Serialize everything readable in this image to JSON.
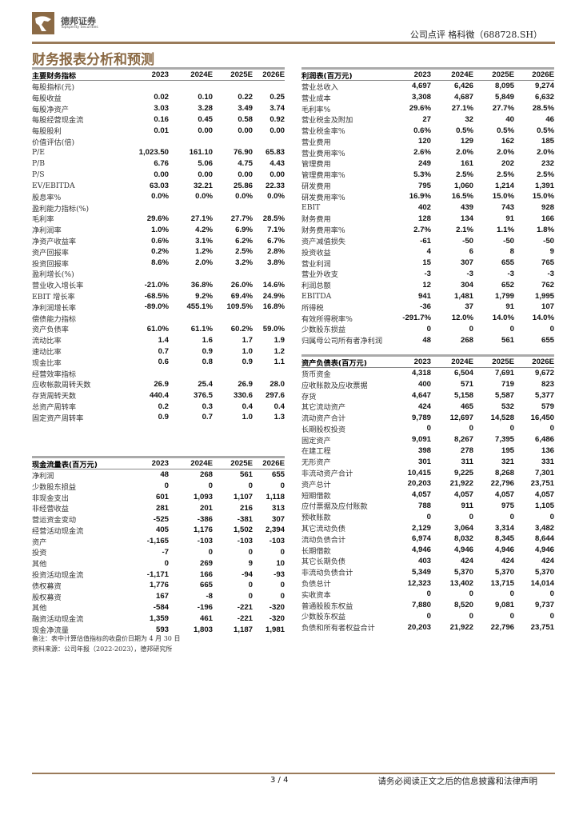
{
  "header": {
    "brand_cn": "德邦证券",
    "brand_en": "Topsperity Securities",
    "report_type": "公司点评  格科微（688728.SH）",
    "section_title": "财务报表分析和预测"
  },
  "colors": {
    "brand": "#8b6a45",
    "rule": "#9a7b5a"
  },
  "key_metrics": {
    "columns": [
      "主要财务指标",
      "2023",
      "2024E",
      "2025E",
      "2026E"
    ],
    "rows": [
      [
        "每股指标(元)",
        "",
        "",
        "",
        ""
      ],
      [
        "每股收益",
        "0.02",
        "0.10",
        "0.22",
        "0.25"
      ],
      [
        "每股净资产",
        "3.03",
        "3.28",
        "3.49",
        "3.74"
      ],
      [
        "每股经营现金流",
        "0.16",
        "0.45",
        "0.58",
        "0.92"
      ],
      [
        "每股股利",
        "0.01",
        "0.00",
        "0.00",
        "0.00"
      ],
      [
        "价值评估(倍)",
        "",
        "",
        "",
        ""
      ],
      [
        "P/E",
        "1,023.50",
        "161.10",
        "76.90",
        "65.83"
      ],
      [
        "P/B",
        "6.76",
        "5.06",
        "4.75",
        "4.43"
      ],
      [
        "P/S",
        "0.00",
        "0.00",
        "0.00",
        "0.00"
      ],
      [
        "EV/EBITDA",
        "63.03",
        "32.21",
        "25.86",
        "22.33"
      ],
      [
        "股息率%",
        "0.0%",
        "0.0%",
        "0.0%",
        "0.0%"
      ],
      [
        "盈利能力指标(%)",
        "",
        "",
        "",
        ""
      ],
      [
        "毛利率",
        "29.6%",
        "27.1%",
        "27.7%",
        "28.5%"
      ],
      [
        "净利润率",
        "1.0%",
        "4.2%",
        "6.9%",
        "7.1%"
      ],
      [
        "净资产收益率",
        "0.6%",
        "3.1%",
        "6.2%",
        "6.7%"
      ],
      [
        "资产回报率",
        "0.2%",
        "1.2%",
        "2.5%",
        "2.8%"
      ],
      [
        "投资回报率",
        "8.6%",
        "2.0%",
        "3.2%",
        "3.8%"
      ],
      [
        "盈利增长(%)",
        "",
        "",
        "",
        ""
      ],
      [
        "营业收入增长率",
        "-21.0%",
        "36.8%",
        "26.0%",
        "14.6%"
      ],
      [
        "EBIT 增长率",
        "-68.5%",
        "9.2%",
        "69.4%",
        "24.9%"
      ],
      [
        "净利润增长率",
        "-89.0%",
        "455.1%",
        "109.5%",
        "16.8%"
      ],
      [
        "偿债能力指标",
        "",
        "",
        "",
        ""
      ],
      [
        "资产负债率",
        "61.0%",
        "61.1%",
        "60.2%",
        "59.0%"
      ],
      [
        "流动比率",
        "1.4",
        "1.6",
        "1.7",
        "1.9"
      ],
      [
        "速动比率",
        "0.7",
        "0.9",
        "1.0",
        "1.2"
      ],
      [
        "现金比率",
        "0.6",
        "0.8",
        "0.9",
        "1.1"
      ],
      [
        "经营效率指标",
        "",
        "",
        "",
        ""
      ],
      [
        "应收帐款周转天数",
        "26.9",
        "25.4",
        "26.9",
        "28.0"
      ],
      [
        "存货周转天数",
        "440.4",
        "376.5",
        "330.6",
        "297.6"
      ],
      [
        "总资产周转率",
        "0.2",
        "0.3",
        "0.4",
        "0.4"
      ],
      [
        "固定资产周转率",
        "0.9",
        "0.7",
        "1.0",
        "1.3"
      ]
    ]
  },
  "cash_flow": {
    "columns": [
      "现金流量表(百万元)",
      "2023",
      "2024E",
      "2025E",
      "2026E"
    ],
    "rows": [
      [
        "净利润",
        "48",
        "268",
        "561",
        "655"
      ],
      [
        "少数股东损益",
        "0",
        "0",
        "0",
        "0"
      ],
      [
        "非现金支出",
        "601",
        "1,093",
        "1,107",
        "1,118"
      ],
      [
        "非经营收益",
        "281",
        "201",
        "216",
        "313"
      ],
      [
        "营运资金变动",
        "-525",
        "-386",
        "-381",
        "307"
      ],
      [
        "经营活动现金流",
        "405",
        "1,176",
        "1,502",
        "2,394"
      ],
      [
        "资产",
        "-1,165",
        "-103",
        "-103",
        "-103"
      ],
      [
        "投资",
        "-7",
        "0",
        "0",
        "0"
      ],
      [
        "其他",
        "0",
        "269",
        "9",
        "10"
      ],
      [
        "投资活动现金流",
        "-1,171",
        "166",
        "-94",
        "-93"
      ],
      [
        "债权募资",
        "1,776",
        "665",
        "0",
        "0"
      ],
      [
        "股权募资",
        "167",
        "-8",
        "0",
        "0"
      ],
      [
        "其他",
        "-584",
        "-196",
        "-221",
        "-320"
      ],
      [
        "融资活动现金流",
        "1,359",
        "461",
        "-221",
        "-320"
      ],
      [
        "现金净流量",
        "593",
        "1,803",
        "1,187",
        "1,981"
      ]
    ]
  },
  "notes": {
    "note": "备注：表中计算估值指标的收盘价日期为 4 月 30 日",
    "source": "资料来源：公司年报（2022-2023），德邦研究所"
  },
  "income_statement": {
    "columns": [
      "利润表(百万元)",
      "2023",
      "2024E",
      "2025E",
      "2026E"
    ],
    "rows": [
      [
        "营业总收入",
        "4,697",
        "6,426",
        "8,095",
        "9,274"
      ],
      [
        "营业成本",
        "3,308",
        "4,687",
        "5,849",
        "6,632"
      ],
      [
        "毛利率%",
        "29.6%",
        "27.1%",
        "27.7%",
        "28.5%"
      ],
      [
        "营业税金及附加",
        "27",
        "32",
        "40",
        "46"
      ],
      [
        "营业税金率%",
        "0.6%",
        "0.5%",
        "0.5%",
        "0.5%"
      ],
      [
        "营业费用",
        "120",
        "129",
        "162",
        "185"
      ],
      [
        "营业费用率%",
        "2.6%",
        "2.0%",
        "2.0%",
        "2.0%"
      ],
      [
        "管理费用",
        "249",
        "161",
        "202",
        "232"
      ],
      [
        "管理费用率%",
        "5.3%",
        "2.5%",
        "2.5%",
        "2.5%"
      ],
      [
        "研发费用",
        "795",
        "1,060",
        "1,214",
        "1,391"
      ],
      [
        "研发费用率%",
        "16.9%",
        "16.5%",
        "15.0%",
        "15.0%"
      ],
      [
        "EBIT",
        "402",
        "439",
        "743",
        "928"
      ],
      [
        "财务费用",
        "128",
        "134",
        "91",
        "166"
      ],
      [
        "财务费用率%",
        "2.7%",
        "2.1%",
        "1.1%",
        "1.8%"
      ],
      [
        "资产减值损失",
        "-61",
        "-50",
        "-50",
        "-50"
      ],
      [
        "投资收益",
        "4",
        "6",
        "8",
        "9"
      ],
      [
        "营业利润",
        "15",
        "307",
        "655",
        "765"
      ],
      [
        "营业外收支",
        "-3",
        "-3",
        "-3",
        "-3"
      ],
      [
        "利润总额",
        "12",
        "304",
        "652",
        "762"
      ],
      [
        "EBITDA",
        "941",
        "1,481",
        "1,799",
        "1,995"
      ],
      [
        "所得税",
        "-36",
        "37",
        "91",
        "107"
      ],
      [
        "有效所得税率%",
        "-291.7%",
        "12.0%",
        "14.0%",
        "14.0%"
      ],
      [
        "少数股东损益",
        "0",
        "0",
        "0",
        "0"
      ],
      [
        "归属母公司所有者净利润",
        "48",
        "268",
        "561",
        "655"
      ]
    ]
  },
  "balance_sheet": {
    "columns": [
      "资产负债表(百万元)",
      "2023",
      "2024E",
      "2025E",
      "2026E"
    ],
    "rows": [
      [
        "货币资金",
        "4,318",
        "6,504",
        "7,691",
        "9,672"
      ],
      [
        "应收账款及应收票据",
        "400",
        "571",
        "719",
        "823"
      ],
      [
        "存货",
        "4,647",
        "5,158",
        "5,587",
        "5,377"
      ],
      [
        "其它流动资产",
        "424",
        "465",
        "532",
        "579"
      ],
      [
        "流动资产合计",
        "9,789",
        "12,697",
        "14,528",
        "16,450"
      ],
      [
        "长期股权投资",
        "0",
        "0",
        "0",
        "0"
      ],
      [
        "固定资产",
        "9,091",
        "8,267",
        "7,395",
        "6,486"
      ],
      [
        "在建工程",
        "398",
        "278",
        "195",
        "136"
      ],
      [
        "无形资产",
        "301",
        "311",
        "321",
        "331"
      ],
      [
        "非流动资产合计",
        "10,415",
        "9,225",
        "8,268",
        "7,301"
      ],
      [
        "资产总计",
        "20,203",
        "21,922",
        "22,796",
        "23,751"
      ],
      [
        "短期借款",
        "4,057",
        "4,057",
        "4,057",
        "4,057"
      ],
      [
        "应付票据及应付账款",
        "788",
        "911",
        "975",
        "1,105"
      ],
      [
        "预收账款",
        "0",
        "0",
        "0",
        "0"
      ],
      [
        "其它流动负债",
        "2,129",
        "3,064",
        "3,314",
        "3,482"
      ],
      [
        "流动负债合计",
        "6,974",
        "8,032",
        "8,345",
        "8,644"
      ],
      [
        "长期借款",
        "4,946",
        "4,946",
        "4,946",
        "4,946"
      ],
      [
        "其它长期负债",
        "403",
        "424",
        "424",
        "424"
      ],
      [
        "非流动负债合计",
        "5,349",
        "5,370",
        "5,370",
        "5,370"
      ],
      [
        "负债总计",
        "12,323",
        "13,402",
        "13,715",
        "14,014"
      ],
      [
        "实收资本",
        "0",
        "0",
        "0",
        "0"
      ],
      [
        "普通股股东权益",
        "7,880",
        "8,520",
        "9,081",
        "9,737"
      ],
      [
        "少数股东权益",
        "0",
        "0",
        "0",
        "0"
      ],
      [
        "负债和所有者权益合计",
        "20,203",
        "21,922",
        "22,796",
        "23,751"
      ]
    ]
  },
  "footer": {
    "page": "3 / 4",
    "disclaimer": "请务必阅读正文之后的信息披露和法律声明"
  }
}
